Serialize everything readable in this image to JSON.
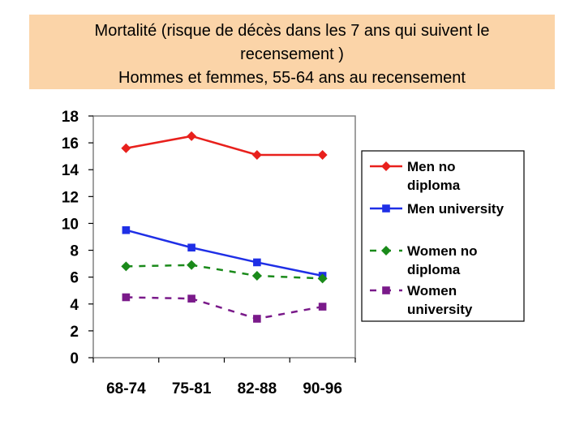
{
  "title_lines": [
    "Mortalité (risque de décès dans les 7 ans qui suivent le",
    "recensement )",
    "Hommes et femmes, 55-64 ans au recensement"
  ],
  "colors": {
    "title_bg": "#fbd4a8",
    "red": "#e8201c",
    "blue": "#1f2fe6",
    "green": "#1a8a1a",
    "purple": "#7a1a8a"
  },
  "chart_data": {
    "type": "line",
    "categories": [
      "68-74",
      "75-81",
      "82-88",
      "90-96"
    ],
    "ylim": [
      0,
      18
    ],
    "yticks": [
      0,
      2,
      4,
      6,
      8,
      10,
      12,
      14,
      16,
      18
    ],
    "grid": false,
    "legend_position": "right",
    "series": [
      {
        "name": "Men no diploma",
        "legend_lines": [
          "Men no",
          "diploma"
        ],
        "values": [
          15.6,
          16.5,
          15.1,
          15.1
        ],
        "color": "#e8201c",
        "marker": "diamond",
        "dash": "solid"
      },
      {
        "name": "Men university",
        "legend_lines": [
          "Men university"
        ],
        "values": [
          9.5,
          8.2,
          7.1,
          6.1
        ],
        "color": "#1f2fe6",
        "marker": "square",
        "dash": "solid"
      },
      {
        "name": "Women no diploma",
        "legend_lines": [
          "Women no",
          "diploma"
        ],
        "values": [
          6.8,
          6.9,
          6.1,
          5.9
        ],
        "color": "#1a8a1a",
        "marker": "diamond",
        "dash": "dashed"
      },
      {
        "name": "Women university",
        "legend_lines": [
          "Women",
          "university"
        ],
        "values": [
          4.5,
          4.4,
          2.9,
          3.8
        ],
        "color": "#7a1a8a",
        "marker": "square",
        "dash": "dashed"
      }
    ]
  }
}
